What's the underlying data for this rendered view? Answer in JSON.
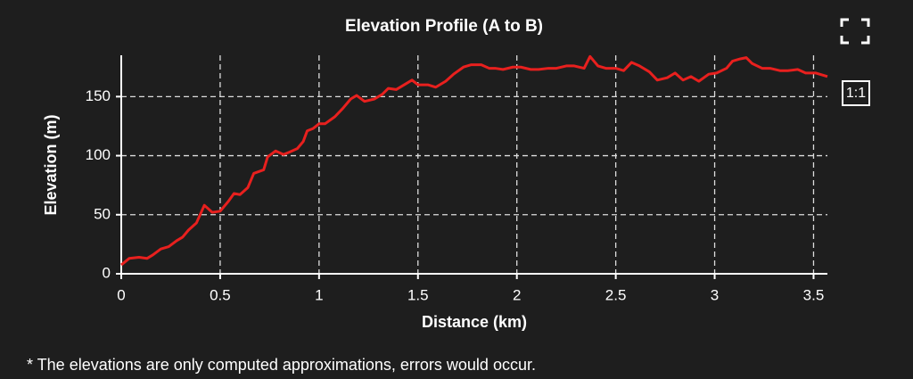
{
  "chart_data": {
    "type": "line",
    "title": "Elevation Profile (A to B)",
    "x_label": "Distance (km)",
    "y_label": "Elevation (m)",
    "x": [
      0,
      0.04,
      0.09,
      0.13,
      0.16,
      0.2,
      0.24,
      0.28,
      0.31,
      0.34,
      0.38,
      0.42,
      0.46,
      0.5,
      0.54,
      0.57,
      0.6,
      0.64,
      0.67,
      0.72,
      0.74,
      0.78,
      0.82,
      0.85,
      0.89,
      0.92,
      0.94,
      0.97,
      1.0,
      1.03,
      1.08,
      1.12,
      1.16,
      1.19,
      1.23,
      1.28,
      1.32,
      1.35,
      1.39,
      1.44,
      1.47,
      1.5,
      1.55,
      1.59,
      1.64,
      1.68,
      1.73,
      1.77,
      1.82,
      1.86,
      1.89,
      1.93,
      1.98,
      2.02,
      2.07,
      2.11,
      2.16,
      2.2,
      2.25,
      2.29,
      2.34,
      2.37,
      2.41,
      2.45,
      2.5,
      2.54,
      2.58,
      2.62,
      2.67,
      2.71,
      2.76,
      2.8,
      2.84,
      2.88,
      2.92,
      2.97,
      3.01,
      3.06,
      3.09,
      3.13,
      3.16,
      3.19,
      3.24,
      3.28,
      3.33,
      3.37,
      3.42,
      3.46,
      3.51,
      3.57
    ],
    "series": [
      {
        "color": "#e8201e",
        "values": [
          7.5,
          13,
          14,
          13,
          16,
          21,
          23,
          28,
          31,
          37,
          43,
          58,
          52,
          53,
          61,
          68,
          67,
          73,
          85,
          88,
          99,
          104,
          101,
          103,
          106,
          112,
          121,
          123,
          127,
          127,
          133,
          140,
          148,
          151,
          146,
          148,
          152,
          157,
          156,
          161,
          164,
          160,
          160,
          158,
          163,
          169,
          175,
          177,
          177,
          174,
          174,
          173,
          175,
          175,
          173,
          173,
          174,
          174,
          176,
          176,
          174,
          184,
          176,
          174,
          174,
          172,
          179,
          176,
          171,
          164,
          166,
          170,
          164,
          167,
          163,
          169,
          170,
          174,
          180,
          182,
          183,
          178,
          174,
          174,
          172,
          172,
          173,
          170,
          170,
          167
        ]
      }
    ],
    "xlim": [
      0,
      3.57
    ],
    "ylim": [
      0,
      185
    ],
    "xticks": [
      0,
      0.5,
      1,
      1.5,
      2,
      2.5,
      3,
      3.5
    ],
    "yticks": [
      0,
      50,
      100,
      150
    ],
    "grid": true
  },
  "ratio_button": "1:1",
  "footnote": "* The elevations are only computed approximations, errors would occur."
}
